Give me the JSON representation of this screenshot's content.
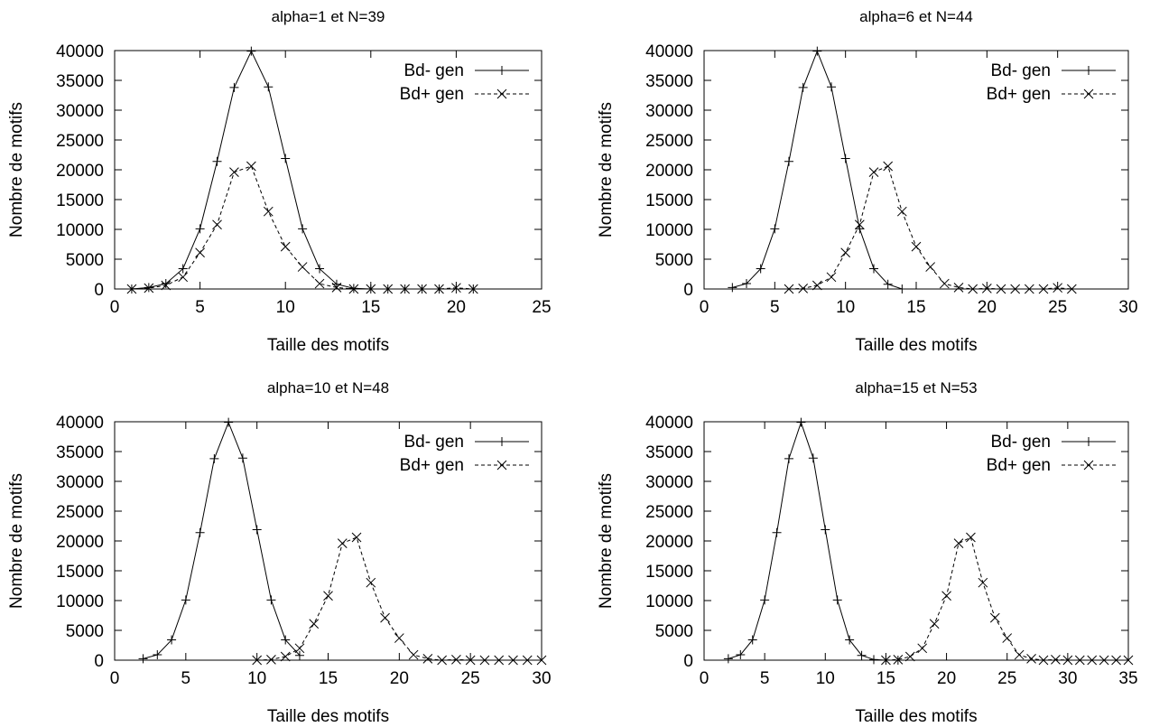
{
  "chart_data": [
    {
      "type": "line",
      "title": "alpha=1 et N=39",
      "xlabel": "Taille des motifs",
      "ylabel": "Nombre de motifs",
      "xlim": [
        0,
        25
      ],
      "ylim": [
        0,
        40000
      ],
      "xticks": [
        0,
        5,
        10,
        15,
        20,
        25
      ],
      "yticks": [
        0,
        5000,
        10000,
        15000,
        20000,
        25000,
        30000,
        35000,
        40000
      ],
      "legend_position": "top-right",
      "grid": false,
      "series": [
        {
          "name": "Bd- gen",
          "line": "solid",
          "marker": "plus",
          "x": [
            1,
            2,
            3,
            4,
            5,
            6,
            7,
            8,
            9,
            10,
            11,
            12,
            13,
            14,
            15,
            16,
            17,
            18,
            19,
            20,
            21
          ],
          "y": [
            0,
            250,
            900,
            3400,
            10100,
            21400,
            33800,
            39900,
            33900,
            21900,
            10100,
            3400,
            800,
            100,
            0,
            0,
            0,
            0,
            0,
            0,
            0
          ]
        },
        {
          "name": "Bd+ gen",
          "line": "dashed",
          "marker": "cross",
          "x": [
            1,
            2,
            3,
            4,
            5,
            6,
            7,
            8,
            9,
            10,
            11,
            12,
            13,
            14,
            15,
            16,
            17,
            18,
            19,
            20,
            21
          ],
          "y": [
            0,
            150,
            600,
            2000,
            6100,
            10800,
            19600,
            20600,
            13000,
            7100,
            3700,
            900,
            250,
            0,
            0,
            0,
            0,
            0,
            0,
            200,
            0
          ]
        }
      ]
    },
    {
      "type": "line",
      "title": "alpha=6 et N=44",
      "xlabel": "Taille des motifs",
      "ylabel": "Nombre de motifs",
      "xlim": [
        0,
        30
      ],
      "ylim": [
        0,
        40000
      ],
      "xticks": [
        0,
        5,
        10,
        15,
        20,
        25,
        30
      ],
      "yticks": [
        0,
        5000,
        10000,
        15000,
        20000,
        25000,
        30000,
        35000,
        40000
      ],
      "legend_position": "top-right",
      "grid": false,
      "series": [
        {
          "name": "Bd- gen",
          "line": "solid",
          "marker": "plus",
          "x": [
            2,
            3,
            4,
            5,
            6,
            7,
            8,
            9,
            10,
            11,
            12,
            13,
            14
          ],
          "y": [
            250,
            900,
            3400,
            10100,
            21400,
            33800,
            39900,
            33900,
            21900,
            10100,
            3400,
            800,
            0
          ]
        },
        {
          "name": "Bd+ gen",
          "line": "dashed",
          "marker": "cross",
          "x": [
            6,
            7,
            8,
            9,
            10,
            11,
            12,
            13,
            14,
            15,
            16,
            17,
            18,
            19,
            20,
            21,
            22,
            23,
            24,
            25,
            26
          ],
          "y": [
            0,
            100,
            600,
            2000,
            6100,
            10800,
            19600,
            20600,
            13000,
            7100,
            3700,
            900,
            250,
            0,
            100,
            0,
            0,
            0,
            0,
            200,
            0
          ]
        }
      ]
    },
    {
      "type": "line",
      "title": "alpha=10 et N=48",
      "xlabel": "Taille des motifs",
      "ylabel": "Nombre de motifs",
      "xlim": [
        0,
        30
      ],
      "ylim": [
        0,
        40000
      ],
      "xticks": [
        0,
        5,
        10,
        15,
        20,
        25,
        30
      ],
      "yticks": [
        0,
        5000,
        10000,
        15000,
        20000,
        25000,
        30000,
        35000,
        40000
      ],
      "legend_position": "top-right",
      "grid": false,
      "series": [
        {
          "name": "Bd- gen",
          "line": "solid",
          "marker": "plus",
          "x": [
            2,
            3,
            4,
            5,
            6,
            7,
            8,
            9,
            10,
            11,
            12,
            13
          ],
          "y": [
            250,
            900,
            3400,
            10100,
            21400,
            33800,
            39900,
            33900,
            21900,
            10100,
            3400,
            800
          ]
        },
        {
          "name": "Bd+ gen",
          "line": "dashed",
          "marker": "cross",
          "x": [
            10,
            11,
            12,
            13,
            14,
            15,
            16,
            17,
            18,
            19,
            20,
            21,
            22,
            23,
            24,
            25,
            26,
            27,
            28,
            29,
            30
          ],
          "y": [
            0,
            100,
            600,
            2000,
            6100,
            10800,
            19600,
            20600,
            13000,
            7100,
            3700,
            900,
            250,
            0,
            100,
            0,
            0,
            0,
            0,
            0,
            0
          ]
        }
      ]
    },
    {
      "type": "line",
      "title": "alpha=15 et N=53",
      "xlabel": "Taille des motifs",
      "ylabel": "Nombre de motifs",
      "xlim": [
        0,
        35
      ],
      "ylim": [
        0,
        40000
      ],
      "xticks": [
        0,
        5,
        10,
        15,
        20,
        25,
        30,
        35
      ],
      "yticks": [
        0,
        5000,
        10000,
        15000,
        20000,
        25000,
        30000,
        35000,
        40000
      ],
      "legend_position": "top-right",
      "grid": false,
      "series": [
        {
          "name": "Bd- gen",
          "line": "solid",
          "marker": "plus",
          "x": [
            2,
            3,
            4,
            5,
            6,
            7,
            8,
            9,
            10,
            11,
            12,
            13,
            14,
            15,
            16
          ],
          "y": [
            250,
            900,
            3400,
            10100,
            21400,
            33800,
            39900,
            33900,
            21900,
            10100,
            3400,
            800,
            100,
            0,
            0
          ]
        },
        {
          "name": "Bd+ gen",
          "line": "dashed",
          "marker": "cross",
          "x": [
            15,
            16,
            17,
            18,
            19,
            20,
            21,
            22,
            23,
            24,
            25,
            26,
            27,
            28,
            29,
            30,
            31,
            32,
            33,
            34,
            35
          ],
          "y": [
            0,
            100,
            600,
            2000,
            6100,
            10800,
            19600,
            20600,
            13000,
            7100,
            3700,
            900,
            250,
            0,
            100,
            0,
            0,
            0,
            0,
            0,
            0
          ]
        }
      ]
    }
  ]
}
